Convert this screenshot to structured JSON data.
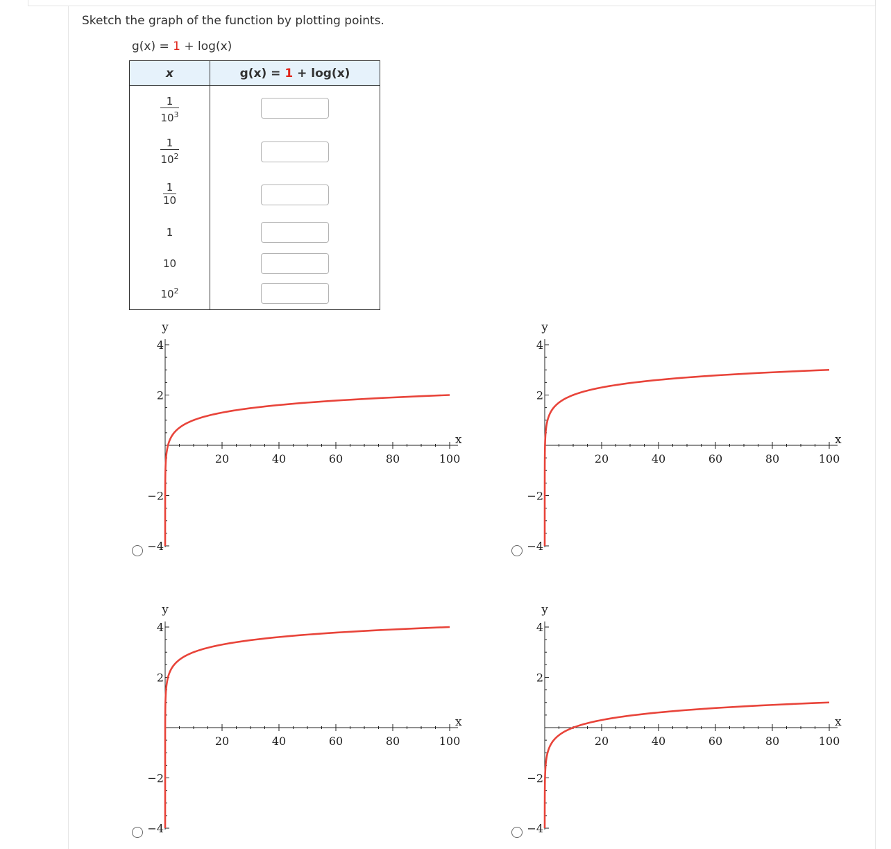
{
  "instruction": "Sketch the graph of the function by plotting points.",
  "function_label": {
    "prefix": "g(x) = ",
    "constant": "1",
    "suffix": " + log(x)"
  },
  "table": {
    "col_x": "x",
    "col_g": {
      "prefix": "g(x) = ",
      "constant": "1",
      "suffix": " + log(x)"
    },
    "rows": [
      {
        "num": "1",
        "den_base": "10",
        "den_exp": "3",
        "answer": ""
      },
      {
        "num": "1",
        "den_base": "10",
        "den_exp": "2",
        "answer": ""
      },
      {
        "num": "1",
        "den_base": "10",
        "den_exp": "",
        "answer": ""
      },
      {
        "plain": "1",
        "answer": ""
      },
      {
        "plain": "10",
        "answer": ""
      },
      {
        "plain_base": "10",
        "plain_exp": "2",
        "answer": ""
      }
    ]
  },
  "colors": {
    "curve": "#e8443a",
    "axis": "#222222",
    "accent": "#e0251b",
    "header_bg": "#e6f2fb"
  },
  "chart_data": [
    {
      "type": "line",
      "option": "a",
      "function": "y = log(x)",
      "xlabel": "x",
      "ylabel": "y",
      "xlim": [
        0,
        100
      ],
      "ylim": [
        -4,
        4
      ],
      "x_ticks": [
        "20",
        "40",
        "60",
        "80",
        "100"
      ],
      "y_ticks": [
        "4",
        "2",
        "-2",
        "-4"
      ],
      "x": [
        0.0001,
        0.01,
        0.1,
        1,
        5,
        10,
        20,
        40,
        60,
        80,
        100
      ],
      "y": [
        -4,
        -2,
        -1,
        0,
        0.7,
        1,
        1.3,
        1.6,
        1.78,
        1.9,
        2
      ]
    },
    {
      "type": "line",
      "option": "b",
      "function": "y = 1 + log(x)",
      "xlabel": "x",
      "ylabel": "y",
      "xlim": [
        0,
        100
      ],
      "ylim": [
        -4,
        4
      ],
      "x_ticks": [
        "20",
        "40",
        "60",
        "80",
        "100"
      ],
      "y_ticks": [
        "4",
        "2",
        "-2",
        "-4"
      ],
      "x": [
        0.001,
        0.01,
        0.1,
        1,
        5,
        10,
        20,
        40,
        60,
        80,
        100
      ],
      "y": [
        -2,
        -1,
        0,
        1,
        1.7,
        2,
        2.3,
        2.6,
        2.78,
        2.9,
        3
      ]
    },
    {
      "type": "line",
      "option": "c",
      "function": "y = 2 + log(x)",
      "xlabel": "x",
      "ylabel": "y",
      "xlim": [
        0,
        100
      ],
      "ylim": [
        -4,
        4
      ],
      "x_ticks": [
        "20",
        "40",
        "60",
        "80",
        "100"
      ],
      "y_ticks": [
        "4",
        "2",
        "-2",
        "-4"
      ],
      "x": [
        1e-06,
        0.0001,
        0.01,
        0.1,
        1,
        10,
        20,
        40,
        60,
        80,
        100
      ],
      "y": [
        -4,
        -2,
        0,
        1,
        2,
        3,
        3.3,
        3.6,
        3.78,
        3.9,
        4
      ]
    },
    {
      "type": "line",
      "option": "d",
      "function": "y = log(x) - 1",
      "xlabel": "x",
      "ylabel": "y",
      "xlim": [
        0,
        100
      ],
      "ylim": [
        -4,
        4
      ],
      "x_ticks": [
        "20",
        "40",
        "60",
        "80",
        "100"
      ],
      "y_ticks": [
        "4",
        "2",
        "-2",
        "-4"
      ],
      "x": [
        0.001,
        0.01,
        0.1,
        1,
        10,
        20,
        40,
        60,
        80,
        100
      ],
      "y": [
        -4,
        -3,
        -2,
        -1,
        0,
        0.3,
        0.6,
        0.78,
        0.9,
        1
      ]
    }
  ]
}
